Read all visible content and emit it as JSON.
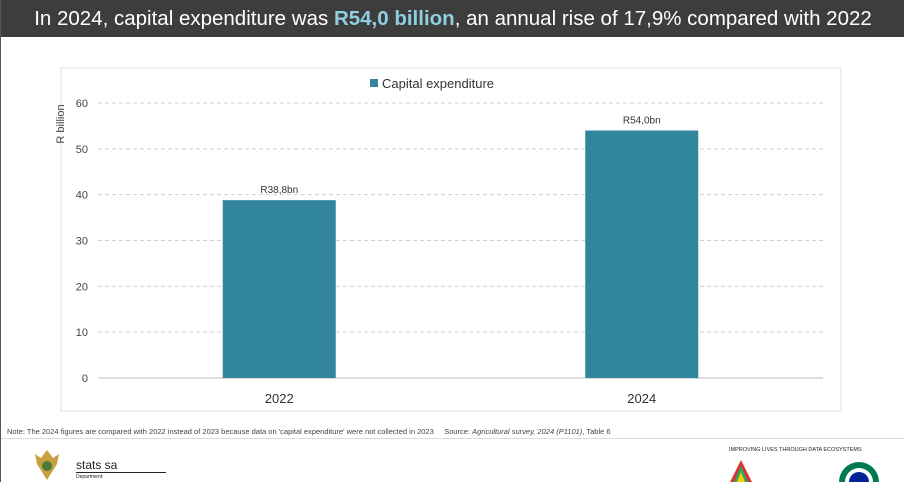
{
  "header": {
    "prefix": "In 2024, capital expenditure was ",
    "highlight": "R54,0 billion",
    "suffix": ", an annual rise of 17,9% compared with 2022"
  },
  "chart_data": {
    "type": "bar",
    "categories": [
      "2022",
      "2024"
    ],
    "series": [
      {
        "name": "Capital expenditure",
        "values": [
          38.8,
          54.0
        ],
        "labels": [
          "R38,8bn",
          "R54,0bn"
        ],
        "color": "#31859c"
      }
    ],
    "ylabel": "R billion",
    "xlabel": "",
    "ylim": [
      0,
      60
    ],
    "yticks": [
      0,
      10,
      20,
      30,
      40,
      50,
      60
    ],
    "grid": true,
    "legend": "top"
  },
  "footer": {
    "note": "Note: The 2024 figures are compared with 2022 instead of 2023 because data on 'capital expenditure' were not collected in 2023",
    "source_prefix": "Source: ",
    "source_title": "Agricultural survey, 2024 (P1101)",
    "source_suffix": ", Table 6",
    "brand": "stats sa",
    "dept": "Department:",
    "tagline": "IMPROVING LIVES THROUGH DATA ECOSYSTEMS"
  }
}
